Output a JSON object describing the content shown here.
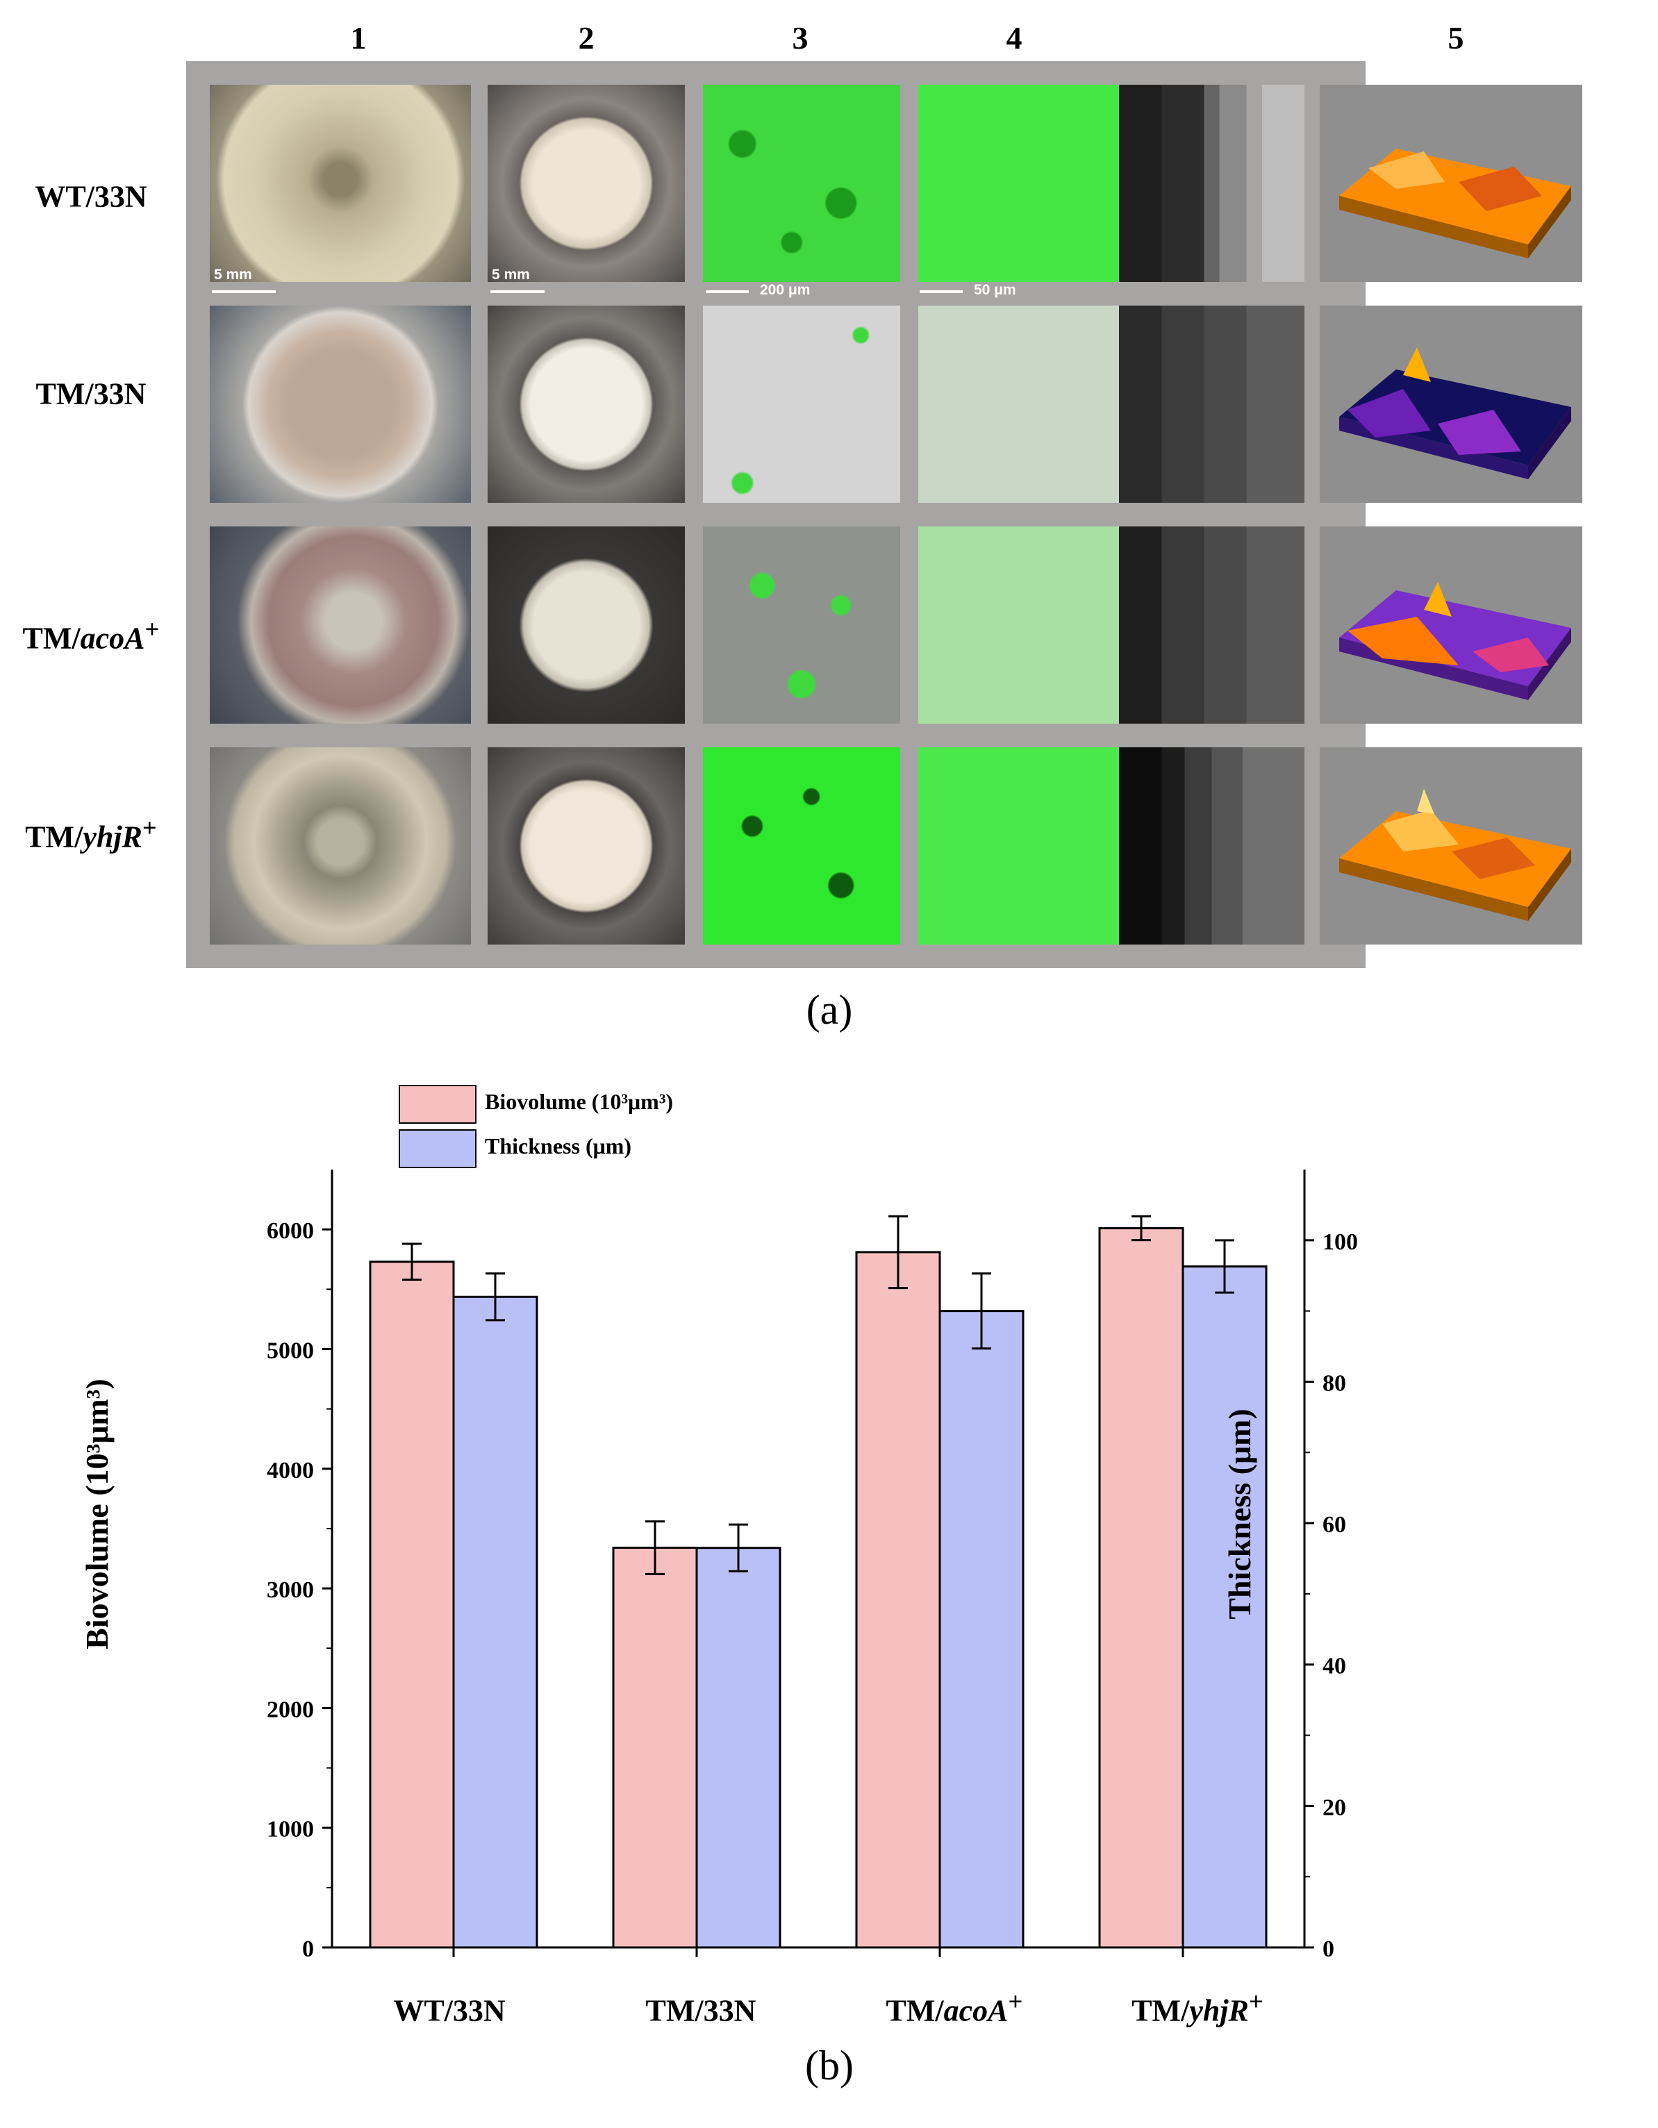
{
  "panel_a": {
    "columns": [
      "1",
      "2",
      "3",
      "4",
      "5"
    ],
    "rows": [
      {
        "base": "WT/33N",
        "italic": "",
        "sup": ""
      },
      {
        "base": "TM/33N",
        "italic": "",
        "sup": ""
      },
      {
        "base": "TM/",
        "italic": "acoA",
        "sup": "+"
      },
      {
        "base": "TM/",
        "italic": "yhjR",
        "sup": "+"
      }
    ],
    "scale_bars": {
      "col1": "5 mm",
      "col2": "5 mm",
      "col3": "200 μm",
      "col4": "50 μm"
    },
    "caption": "(a)"
  },
  "panel_b": {
    "caption": "(b)",
    "legend": {
      "biovolume": "Biovolume (10³μm³)",
      "thickness": "Thickness (μm)"
    },
    "colors": {
      "biovolume": "#f7c0c0",
      "thickness": "#b9c0f7"
    }
  },
  "chart_data": {
    "type": "bar",
    "categories": [
      "WT/33N",
      "TM/33N",
      "TM/acoA+",
      "TM/yhjR+"
    ],
    "category_labels": [
      {
        "base": "WT/33N",
        "italic": "",
        "sup": ""
      },
      {
        "base": "TM/33N",
        "italic": "",
        "sup": ""
      },
      {
        "base": "TM/",
        "italic": "acoA",
        "sup": "+"
      },
      {
        "base": "TM/",
        "italic": "yhjR",
        "sup": "+"
      }
    ],
    "series": [
      {
        "name": "Biovolume (10³μm³)",
        "axis": "left",
        "values": [
          5730,
          3340,
          5810,
          6010
        ],
        "errors": [
          150,
          220,
          300,
          100
        ]
      },
      {
        "name": "Thickness (μm)",
        "axis": "right",
        "values": [
          92,
          56.5,
          90,
          96.3
        ],
        "errors": [
          3.3,
          3.3,
          5.3,
          3.7
        ]
      }
    ],
    "ylabel": "Biovolume (10³μm³)",
    "ylabel_right": "Thickness (μm)",
    "ylim": [
      0,
      6500
    ],
    "ylim_right": [
      0,
      110
    ],
    "yticks": [
      0,
      1000,
      2000,
      3000,
      4000,
      5000,
      6000
    ],
    "yticks_right": [
      0,
      20,
      40,
      60,
      80,
      100
    ],
    "grid": false,
    "legend_position": "top-left"
  }
}
